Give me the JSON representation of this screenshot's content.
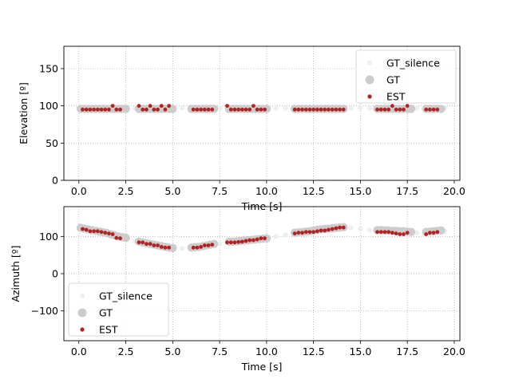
{
  "chart_data": [
    {
      "type": "scatter",
      "title": "",
      "xlabel": "Time [s]",
      "ylabel": "Elevation [º]",
      "xlim": [
        -0.8,
        20.3
      ],
      "ylim": [
        0,
        180
      ],
      "xticks": [
        0.0,
        2.5,
        5.0,
        7.5,
        10.0,
        12.5,
        15.0,
        17.5,
        20.0
      ],
      "xtick_labels": [
        "0.0",
        "2.5",
        "5.0",
        "7.5",
        "10.0",
        "12.5",
        "15.0",
        "17.5",
        "20.0"
      ],
      "yticks": [
        0,
        50,
        100,
        150
      ],
      "ytick_labels": [
        "0",
        "50",
        "100",
        "150"
      ],
      "grid": true,
      "legend_position": "top-right",
      "series": [
        {
          "name": "GT_silence",
          "color": "#eeeeee",
          "x": [
            0.0,
            0.5,
            1.0,
            1.5,
            2.0,
            2.5,
            3.0,
            3.5,
            4.0,
            4.5,
            5.0,
            5.5,
            6.0,
            6.5,
            7.0,
            7.5,
            8.0,
            8.5,
            9.0,
            9.5,
            10.0,
            10.5,
            11.0,
            11.5,
            12.0,
            12.5,
            13.0,
            13.5,
            14.0,
            14.5,
            15.0,
            15.5,
            16.0,
            16.5,
            17.0,
            17.5,
            18.0,
            18.5,
            19.0,
            19.5
          ],
          "y": [
            97,
            97,
            97,
            97,
            97,
            97,
            97,
            97,
            97,
            97,
            97,
            97,
            97,
            97,
            97,
            97,
            97,
            97,
            97,
            97,
            97,
            97,
            97,
            97,
            97,
            97,
            97,
            97,
            97,
            97,
            97,
            97,
            97,
            97,
            97,
            97,
            97,
            97,
            97,
            97
          ]
        },
        {
          "name": "GT",
          "color": "#cccccc",
          "x": [
            0.1,
            0.3,
            0.5,
            0.7,
            0.9,
            1.1,
            1.3,
            1.5,
            1.7,
            1.9,
            2.1,
            2.3,
            2.5,
            3.2,
            3.4,
            3.6,
            3.8,
            4.0,
            4.2,
            4.4,
            4.6,
            4.8,
            5.0,
            6.0,
            6.2,
            6.4,
            6.6,
            6.8,
            7.0,
            7.2,
            8.0,
            8.2,
            8.4,
            8.6,
            8.8,
            9.0,
            9.2,
            9.4,
            9.6,
            9.8,
            10.0,
            11.5,
            11.7,
            11.9,
            12.1,
            12.3,
            12.5,
            12.7,
            12.9,
            13.1,
            13.3,
            13.5,
            13.7,
            13.9,
            14.1,
            15.9,
            16.1,
            16.3,
            16.5,
            16.7,
            16.9,
            17.1,
            17.3,
            17.5,
            17.7,
            18.5,
            18.7,
            18.9,
            19.1,
            19.3
          ],
          "y": [
            96,
            96,
            96,
            96,
            96,
            96,
            96,
            96,
            96,
            96,
            96,
            96,
            96,
            96,
            96,
            96,
            96,
            96,
            96,
            96,
            96,
            96,
            96,
            96,
            96,
            96,
            96,
            96,
            96,
            96,
            96,
            96,
            96,
            96,
            96,
            96,
            96,
            96,
            96,
            96,
            96,
            96,
            96,
            96,
            96,
            96,
            96,
            96,
            96,
            96,
            96,
            96,
            96,
            96,
            96,
            96,
            96,
            96,
            96,
            96,
            96,
            96,
            96,
            96,
            96,
            96,
            96,
            96,
            96,
            96
          ]
        },
        {
          "name": "EST",
          "color": "#b22222",
          "x": [
            0.2,
            0.4,
            0.6,
            0.8,
            1.0,
            1.2,
            1.4,
            1.6,
            1.8,
            2.0,
            2.2,
            3.2,
            3.4,
            3.6,
            3.8,
            4.0,
            4.2,
            4.4,
            4.6,
            4.8,
            6.1,
            6.3,
            6.5,
            6.7,
            6.9,
            7.1,
            7.9,
            8.1,
            8.3,
            8.5,
            8.7,
            8.9,
            9.1,
            9.3,
            9.5,
            9.7,
            9.9,
            11.5,
            11.7,
            11.9,
            12.1,
            12.3,
            12.5,
            12.7,
            12.9,
            13.1,
            13.3,
            13.5,
            13.7,
            13.9,
            14.1,
            15.9,
            16.1,
            16.3,
            16.5,
            16.7,
            16.9,
            17.1,
            17.3,
            17.5,
            18.5,
            18.7,
            18.9,
            19.1
          ],
          "y": [
            95,
            95,
            95,
            95,
            95,
            95,
            95,
            95,
            100,
            95,
            95,
            100,
            95,
            95,
            100,
            95,
            95,
            100,
            95,
            100,
            95,
            95,
            95,
            95,
            95,
            95,
            100,
            95,
            95,
            95,
            95,
            95,
            95,
            100,
            95,
            95,
            95,
            95,
            95,
            95,
            95,
            95,
            95,
            95,
            95,
            95,
            95,
            95,
            95,
            95,
            95,
            95,
            95,
            95,
            95,
            100,
            95,
            95,
            95,
            100,
            95,
            95,
            95,
            95
          ]
        }
      ]
    },
    {
      "type": "scatter",
      "title": "",
      "xlabel": "Time [s]",
      "ylabel": "Azimuth [º]",
      "xlim": [
        -0.8,
        20.3
      ],
      "ylim": [
        -180,
        180
      ],
      "xticks": [
        0.0,
        2.5,
        5.0,
        7.5,
        10.0,
        12.5,
        15.0,
        17.5,
        20.0
      ],
      "xtick_labels": [
        "0.0",
        "2.5",
        "5.0",
        "7.5",
        "10.0",
        "12.5",
        "15.0",
        "17.5",
        "20.0"
      ],
      "yticks": [
        -100,
        0,
        100
      ],
      "ytick_labels": [
        "−100",
        "0",
        "100"
      ],
      "grid": true,
      "legend_position": "bottom-left",
      "series": [
        {
          "name": "GT_silence",
          "color": "#eeeeee",
          "x": [
            0.0,
            0.5,
            1.0,
            1.5,
            2.0,
            2.5,
            3.0,
            3.5,
            4.0,
            4.5,
            5.0,
            5.5,
            6.0,
            6.5,
            7.0,
            7.5,
            8.0,
            8.5,
            9.0,
            9.5,
            10.0,
            10.5,
            11.0,
            11.5,
            12.0,
            12.5,
            13.0,
            13.5,
            14.0,
            14.5,
            15.0,
            15.5,
            16.0,
            16.5,
            17.0,
            17.5,
            18.0,
            18.5,
            19.0,
            19.5
          ],
          "y": [
            122,
            118,
            114,
            110,
            104,
            96,
            88,
            82,
            78,
            74,
            70,
            68,
            68,
            70,
            74,
            80,
            86,
            88,
            92,
            95,
            97,
            100,
            104,
            108,
            112,
            116,
            120,
            124,
            126,
            124,
            120,
            117,
            115,
            114,
            113,
            112,
            110,
            108,
            110,
            114
          ]
        },
        {
          "name": "GT",
          "color": "#cccccc",
          "x": [
            0.1,
            0.3,
            0.5,
            0.7,
            0.9,
            1.1,
            1.3,
            1.5,
            1.7,
            1.9,
            2.1,
            2.3,
            2.5,
            3.2,
            3.4,
            3.6,
            3.8,
            4.0,
            4.2,
            4.4,
            4.6,
            4.8,
            5.0,
            6.0,
            6.2,
            6.4,
            6.6,
            6.8,
            7.0,
            7.2,
            8.0,
            8.2,
            8.4,
            8.6,
            8.8,
            9.0,
            9.2,
            9.4,
            9.6,
            9.8,
            10.0,
            11.5,
            11.7,
            11.9,
            12.1,
            12.3,
            12.5,
            12.7,
            12.9,
            13.1,
            13.3,
            13.5,
            13.7,
            13.9,
            14.1,
            15.9,
            16.1,
            16.3,
            16.5,
            16.7,
            16.9,
            17.1,
            17.3,
            17.5,
            17.7,
            18.5,
            18.7,
            18.9,
            19.1,
            19.3
          ],
          "y": [
            123,
            121,
            119,
            117,
            115,
            113,
            111,
            109,
            106,
            103,
            100,
            98,
            96,
            86,
            84,
            82,
            80,
            78,
            76,
            74,
            72,
            70,
            69,
            70,
            71,
            72,
            74,
            76,
            78,
            80,
            86,
            86,
            87,
            88,
            89,
            90,
            91,
            92,
            93,
            94,
            95,
            110,
            111,
            112,
            113,
            114,
            116,
            118,
            119,
            120,
            121,
            122,
            123,
            124,
            125,
            117,
            117,
            116,
            116,
            115,
            115,
            114,
            114,
            113,
            112,
            112,
            113,
            114,
            115,
            116
          ]
        },
        {
          "name": "EST",
          "color": "#b22222",
          "x": [
            0.2,
            0.4,
            0.6,
            0.8,
            1.0,
            1.2,
            1.4,
            1.6,
            1.8,
            2.0,
            2.2,
            3.2,
            3.4,
            3.6,
            3.8,
            4.0,
            4.2,
            4.4,
            4.6,
            4.8,
            6.1,
            6.3,
            6.5,
            6.7,
            6.9,
            7.1,
            7.9,
            8.1,
            8.3,
            8.5,
            8.7,
            8.9,
            9.1,
            9.3,
            9.5,
            9.7,
            9.9,
            11.5,
            11.7,
            11.9,
            12.1,
            12.3,
            12.5,
            12.7,
            12.9,
            13.1,
            13.3,
            13.5,
            13.7,
            13.9,
            14.1,
            15.9,
            16.1,
            16.3,
            16.5,
            16.7,
            16.9,
            17.1,
            17.3,
            17.5,
            18.5,
            18.7,
            18.9,
            19.1
          ],
          "y": [
            120,
            118,
            114,
            114,
            114,
            112,
            110,
            108,
            106,
            96,
            95,
            84,
            84,
            80,
            80,
            76,
            76,
            72,
            70,
            70,
            70,
            70,
            72,
            76,
            76,
            78,
            84,
            84,
            84,
            85,
            86,
            88,
            90,
            90,
            92,
            95,
            95,
            108,
            110,
            110,
            112,
            112,
            112,
            114,
            116,
            116,
            118,
            120,
            122,
            124,
            124,
            112,
            112,
            112,
            112,
            110,
            108,
            106,
            106,
            110,
            106,
            110,
            110,
            112
          ]
        }
      ]
    }
  ]
}
